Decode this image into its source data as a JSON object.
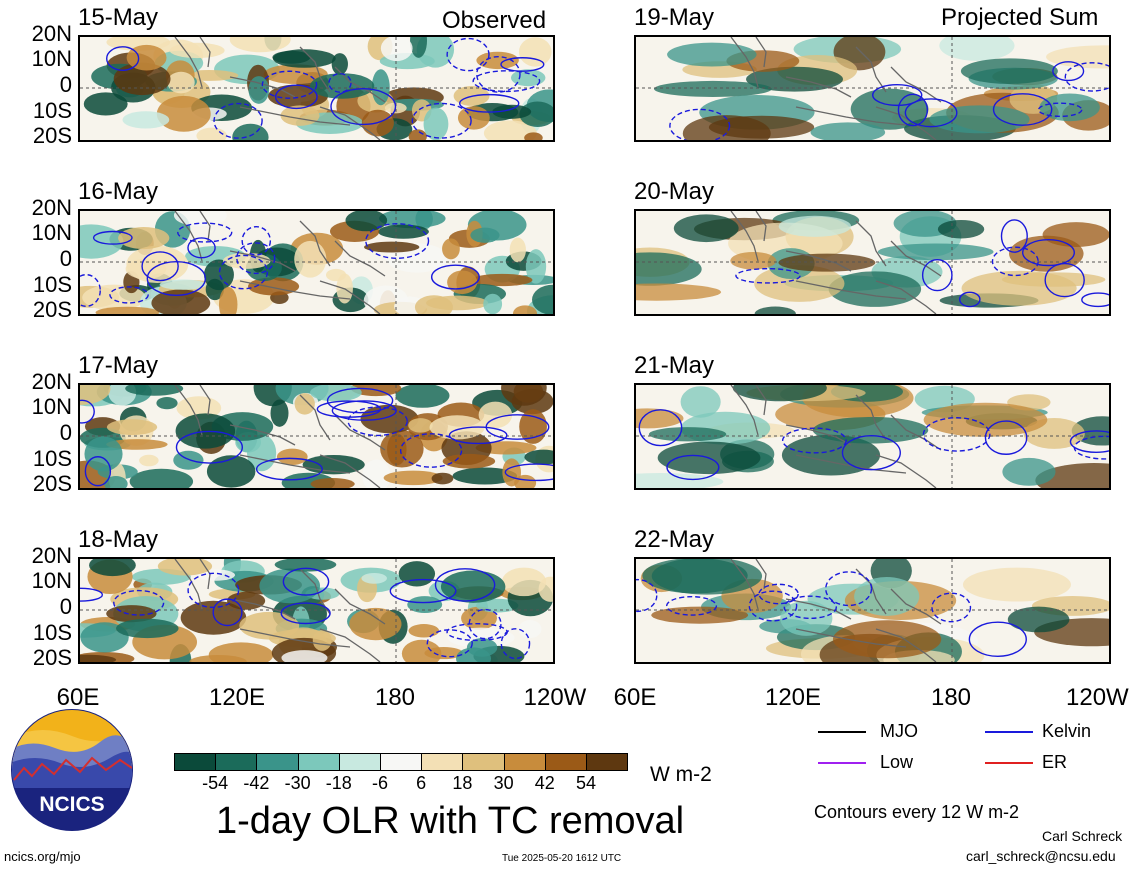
{
  "panels_left": {
    "tag": "Observed",
    "dates": [
      "15-May",
      "16-May",
      "17-May",
      "18-May"
    ]
  },
  "panels_right": {
    "tag": "Projected Sum",
    "dates": [
      "19-May",
      "20-May",
      "21-May",
      "22-May"
    ]
  },
  "lat_labels": [
    "20N",
    "10N",
    "0",
    "10S",
    "20S"
  ],
  "lon_labels": [
    "60E",
    "120E",
    "180",
    "120W"
  ],
  "colorbar": {
    "labels": [
      "-54",
      "-42",
      "-30",
      "-18",
      "-6",
      "6",
      "18",
      "30",
      "42",
      "54"
    ],
    "colors": [
      "#0b4a3a",
      "#1b6b5a",
      "#3a948a",
      "#7cc8bb",
      "#c8e9e0",
      "#f7f7f5",
      "#f3e0b5",
      "#dfc07d",
      "#c88c3c",
      "#9b5a17",
      "#5e3810"
    ],
    "units": "W m-2"
  },
  "title": "1-day OLR with TC removal",
  "logo": {
    "text": "NCICS"
  },
  "legend": {
    "items": [
      {
        "label": "MJO",
        "color": "#000000"
      },
      {
        "label": "Kelvin",
        "color": "#1a1adc"
      },
      {
        "label": "Low",
        "color": "#a020f0"
      },
      {
        "label": "ER",
        "color": "#e02020"
      }
    ],
    "contours_note": "Contours every 12 W m-2"
  },
  "footer": {
    "url": "ncics.org/mjo",
    "timestamp": "Tue 2025-05-20 1612 UTC",
    "author": "Carl Schreck",
    "email": "carl_schreck@ncsu.edu"
  }
}
